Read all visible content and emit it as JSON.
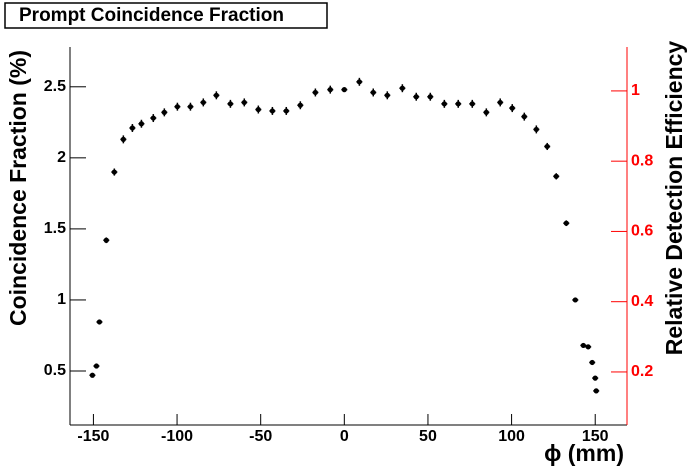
{
  "chart_data": {
    "type": "scatter",
    "title": "Prompt Coincidence Fraction",
    "x_label": "ϕ (mm)",
    "y_label": "Coincidence Fraction (%)",
    "y2_label": "Relative Detection Efficiency",
    "xlim": [
      -164,
      169
    ],
    "xticks": [
      -150,
      -100,
      -50,
      0,
      50,
      100,
      150
    ],
    "ylim": [
      0.12,
      2.78
    ],
    "yticks": [
      0.5,
      1,
      1.5,
      2,
      2.5
    ],
    "y2lim": [
      0.049,
      1.125
    ],
    "y2ticks": [
      0.2,
      0.4,
      0.6,
      0.8,
      1
    ],
    "y2_color": "#ff0000",
    "series": [
      {
        "name": "Coincidence Fraction",
        "color": "#000000",
        "x": [
          -150.6,
          -148.2,
          -146.4,
          -142.3,
          -137.5,
          -132.1,
          -126.7,
          -121.3,
          -114.2,
          -107.6,
          -99.8,
          -92,
          -84.3,
          -76.5,
          -68.1,
          -59.8,
          -51.4,
          -43,
          -34.7,
          -26.3,
          -17.3,
          -8.4,
          0,
          9,
          17.3,
          25.7,
          34.7,
          43,
          51.4,
          59.8,
          68.1,
          76.5,
          84.9,
          93.2,
          100.4,
          107.6,
          114.8,
          121.3,
          126.7,
          132.7,
          138.1,
          142.9,
          145.8,
          148.2,
          150,
          150.6
        ],
        "values": [
          0.47,
          0.535,
          0.845,
          1.42,
          1.9,
          2.13,
          2.21,
          2.24,
          2.28,
          2.32,
          2.36,
          2.36,
          2.39,
          2.44,
          2.38,
          2.39,
          2.34,
          2.33,
          2.33,
          2.37,
          2.46,
          2.48,
          2.48,
          2.535,
          2.46,
          2.44,
          2.49,
          2.43,
          2.43,
          2.38,
          2.38,
          2.38,
          2.32,
          2.39,
          2.35,
          2.29,
          2.2,
          2.08,
          1.87,
          1.54,
          1.0,
          0.68,
          0.67,
          0.56,
          0.45,
          0.36
        ],
        "errors": [
          0.01,
          0.01,
          0.015,
          0.02,
          0.025,
          0.028,
          0.028,
          0.028,
          0.028,
          0.028,
          0.028,
          0.028,
          0.028,
          0.028,
          0.028,
          0.028,
          0.028,
          0.028,
          0.028,
          0.028,
          0.028,
          0.028,
          0.005,
          0.028,
          0.028,
          0.028,
          0.028,
          0.028,
          0.028,
          0.028,
          0.028,
          0.028,
          0.028,
          0.028,
          0.028,
          0.028,
          0.028,
          0.025,
          0.022,
          0.02,
          0.012,
          0.01,
          0.01,
          0.01,
          0.01,
          0.01
        ]
      }
    ]
  }
}
